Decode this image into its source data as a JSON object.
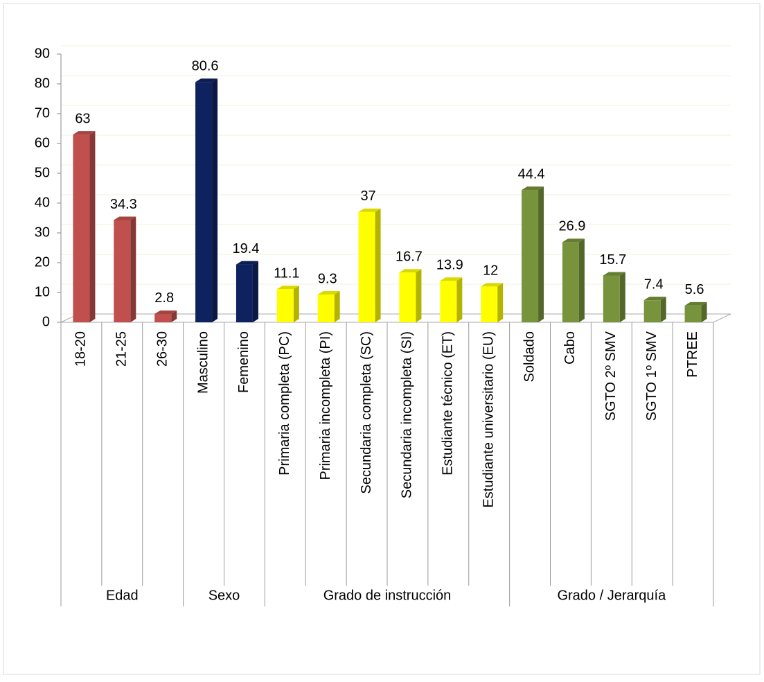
{
  "chart_data": {
    "type": "bar",
    "groups": [
      {
        "name": "Edad",
        "color": "#c0504d",
        "categories": [
          "18-20",
          "21-25",
          "26-30"
        ],
        "values": [
          63,
          34.3,
          2.8
        ]
      },
      {
        "name": "Sexo",
        "color": "#0f2260",
        "categories": [
          "Masculino",
          "Femenino"
        ],
        "values": [
          80.6,
          19.4
        ]
      },
      {
        "name": "Grado de instrucción",
        "color": "#ffff00",
        "categories": [
          "Primaria completa (PC)",
          "Primaria incompleta (PI)",
          "Secundaria completa (SC)",
          "Secundaria incompleta (SI)",
          "Estudiante técnico (ET)",
          "Estudiante universitario (EU)"
        ],
        "values": [
          11.1,
          9.3,
          37,
          16.7,
          13.9,
          12
        ]
      },
      {
        "name": "Grado / Jerarquía",
        "color": "#77933c",
        "categories": [
          "Soldado",
          "Cabo",
          "SGTO 2º SMV",
          "SGTO 1º SMV",
          "PTREE"
        ],
        "values": [
          44.4,
          26.9,
          15.7,
          7.4,
          5.6
        ]
      }
    ],
    "ylim": [
      0,
      90
    ],
    "yticks": [
      0,
      10,
      20,
      30,
      40,
      50,
      60,
      70,
      80,
      90
    ],
    "grid": true
  }
}
